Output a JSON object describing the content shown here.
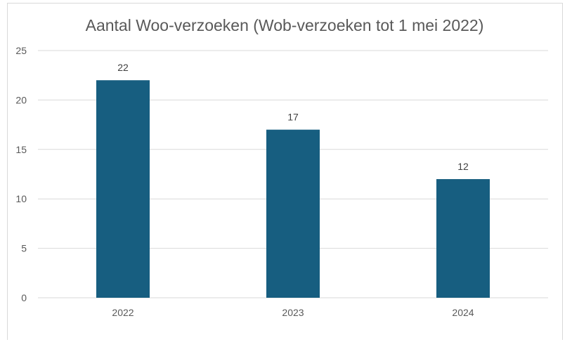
{
  "chart_data": {
    "type": "bar",
    "title": "Aantal Woo-verzoeken (Wob-verzoeken tot 1 mei 2022)",
    "categories": [
      "2022",
      "2023",
      "2024"
    ],
    "values": [
      22,
      17,
      12
    ],
    "data_labels": [
      "22",
      "17",
      "12"
    ],
    "ylim": [
      0,
      25
    ],
    "yticks": [
      0,
      5,
      10,
      15,
      20,
      25
    ],
    "xlabel": "",
    "ylabel": "",
    "grid": true,
    "legend": "none",
    "bar_color": "#175e80"
  }
}
